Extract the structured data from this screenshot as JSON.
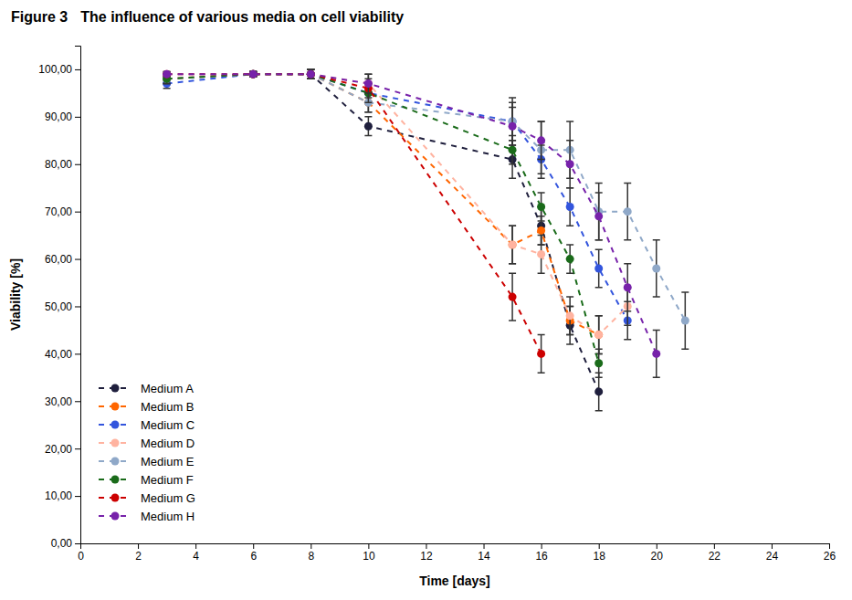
{
  "chart_data": {
    "type": "line",
    "title": "Figure 3",
    "subtitle": "The influence of various media on cell viability",
    "x_label": "Time [days]",
    "y_label": "Viability [%]",
    "xlim": [
      0,
      26
    ],
    "ylim": [
      0,
      105
    ],
    "xticks": [
      0,
      2,
      4,
      6,
      8,
      10,
      12,
      14,
      16,
      18,
      20,
      22,
      24,
      26
    ],
    "yticks": [
      {
        "value": 0,
        "label": "0,00"
      },
      {
        "value": 10,
        "label": "10,00"
      },
      {
        "value": 20,
        "label": "20,00"
      },
      {
        "value": 30,
        "label": "30,00"
      },
      {
        "value": 40,
        "label": "40,00"
      },
      {
        "value": 50,
        "label": "50,00"
      },
      {
        "value": 60,
        "label": "60,00"
      },
      {
        "value": 70,
        "label": "70,00"
      },
      {
        "value": 80,
        "label": "80,00"
      },
      {
        "value": 90,
        "label": "90,00"
      },
      {
        "value": 100,
        "label": "100,00"
      }
    ],
    "grid": false,
    "legend": "lower left",
    "marker": "circle",
    "line_style": "dashed",
    "series": [
      {
        "name": "Medium A",
        "color": "#1f1f3d",
        "x": [
          3,
          6,
          8,
          10,
          15,
          16,
          17,
          18
        ],
        "values": [
          98.0,
          99.0,
          99.0,
          88.0,
          81.0,
          67.0,
          46.0,
          32.0
        ],
        "yerr": [
          1.0,
          0.5,
          1.0,
          2.0,
          4.0,
          4.0,
          4.0,
          4.0
        ]
      },
      {
        "name": "Medium B",
        "color": "#ff6600",
        "x": [
          3,
          6,
          8,
          10,
          15,
          16,
          17,
          18
        ],
        "values": [
          98.0,
          99.0,
          99.0,
          93.0,
          63.0,
          66.0,
          47.0,
          44.0
        ],
        "yerr": [
          1.0,
          0.5,
          1.0,
          2.0,
          4.0,
          3.0,
          3.0,
          4.0
        ]
      },
      {
        "name": "Medium C",
        "color": "#3355dd",
        "x": [
          3,
          6,
          8,
          10,
          15,
          16,
          17,
          18,
          19
        ],
        "values": [
          97.0,
          99.0,
          99.0,
          95.0,
          89.0,
          81.0,
          71.0,
          58.0,
          47.0
        ],
        "yerr": [
          1.0,
          0.5,
          1.0,
          2.0,
          4.0,
          3.0,
          4.0,
          4.0,
          4.0
        ]
      },
      {
        "name": "Medium D",
        "color": "#ffb3a0",
        "x": [
          3,
          6,
          8,
          10,
          15,
          16,
          17,
          18,
          19
        ],
        "values": [
          98.0,
          99.0,
          99.0,
          97.0,
          63.0,
          61.0,
          48.0,
          44.0,
          50.0
        ],
        "yerr": [
          1.0,
          0.5,
          1.0,
          2.0,
          4.0,
          4.0,
          4.0,
          4.0,
          4.0
        ]
      },
      {
        "name": "Medium E",
        "color": "#8fa8c8",
        "x": [
          3,
          6,
          8,
          10,
          15,
          16,
          17,
          18,
          19,
          20,
          21
        ],
        "values": [
          98.0,
          99.0,
          99.0,
          93.0,
          89.0,
          83.0,
          83.0,
          70.0,
          70.0,
          58.0,
          47.0
        ],
        "yerr": [
          1.0,
          0.5,
          1.0,
          2.0,
          5.0,
          6.0,
          6.0,
          6.0,
          6.0,
          6.0,
          6.0
        ]
      },
      {
        "name": "Medium F",
        "color": "#1a6b1a",
        "x": [
          3,
          6,
          8,
          10,
          15,
          16,
          17,
          18
        ],
        "values": [
          98.0,
          99.0,
          99.0,
          95.0,
          83.0,
          71.0,
          60.0,
          38.0
        ],
        "yerr": [
          1.0,
          0.5,
          1.0,
          2.0,
          3.0,
          3.0,
          3.0,
          3.0
        ]
      },
      {
        "name": "Medium G",
        "color": "#cc0000",
        "x": [
          3,
          6,
          8,
          10,
          15,
          16
        ],
        "values": [
          99.0,
          99.0,
          99.0,
          96.0,
          52.0,
          40.0
        ],
        "yerr": [
          0.5,
          0.5,
          1.0,
          2.0,
          5.0,
          4.0
        ]
      },
      {
        "name": "Medium H",
        "color": "#7722aa",
        "x": [
          3,
          6,
          8,
          10,
          15,
          16,
          17,
          18,
          19,
          20
        ],
        "values": [
          99.0,
          99.0,
          99.0,
          97.0,
          88.0,
          85.0,
          80.0,
          69.0,
          54.0,
          40.0
        ],
        "yerr": [
          0.5,
          0.5,
          1.0,
          2.0,
          4.0,
          4.0,
          5.0,
          5.0,
          5.0,
          5.0
        ]
      }
    ]
  }
}
